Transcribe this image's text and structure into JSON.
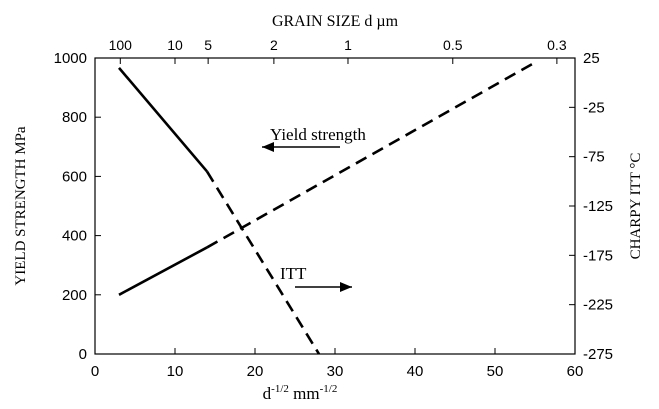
{
  "chart_data": {
    "type": "line",
    "xlabel": "d",
    "xlabel_sup": "-1/2",
    "xlabel_unit": "mm",
    "xlabel_unit_sup": "-1/2",
    "ylabel_left": "YIELD STRENGTH  MPa",
    "ylabel_right": "CHARPY   ITT  °C",
    "top_axis_label": "GRAIN  SIZE  d     µm",
    "xlim": [
      0,
      60
    ],
    "ylim_left": [
      0,
      1000
    ],
    "ylim_right": [
      -275,
      25
    ],
    "x_ticks": [
      0,
      10,
      20,
      30,
      40,
      50,
      60
    ],
    "y_left_ticks": [
      0,
      200,
      400,
      600,
      800,
      1000
    ],
    "y_right_ticks": [
      -275,
      -225,
      -175,
      -125,
      -75,
      -25,
      25
    ],
    "top_ticks": [
      {
        "label": "100",
        "grain_um": 100
      },
      {
        "label": "10",
        "grain_um": 10
      },
      {
        "label": "5",
        "grain_um": 5
      },
      {
        "label": "2",
        "grain_um": 2
      },
      {
        "label": "1",
        "grain_um": 1
      },
      {
        "label": "0.5",
        "grain_um": 0.5
      },
      {
        "label": "0.3",
        "grain_um": 0.3
      }
    ],
    "series": [
      {
        "name": "Yield strength",
        "axis": "left",
        "segments": [
          {
            "style": "solid",
            "x": [
              3,
              14
            ],
            "y": [
              200,
              360
            ]
          },
          {
            "style": "dashed",
            "x": [
              14,
              55
            ],
            "y": [
              360,
              985
            ]
          }
        ]
      },
      {
        "name": "ITT",
        "axis": "right",
        "segments": [
          {
            "style": "solid",
            "x": [
              3,
              14
            ],
            "y": [
              15,
              -90
            ]
          },
          {
            "style": "dashed",
            "x": [
              14,
              28
            ],
            "y": [
              -90,
              -275
            ]
          }
        ]
      }
    ],
    "annotations": [
      {
        "text": "Yield strength",
        "arrow": "left",
        "series": "Yield strength"
      },
      {
        "text": "ITT",
        "arrow": "right",
        "series": "ITT"
      }
    ]
  }
}
